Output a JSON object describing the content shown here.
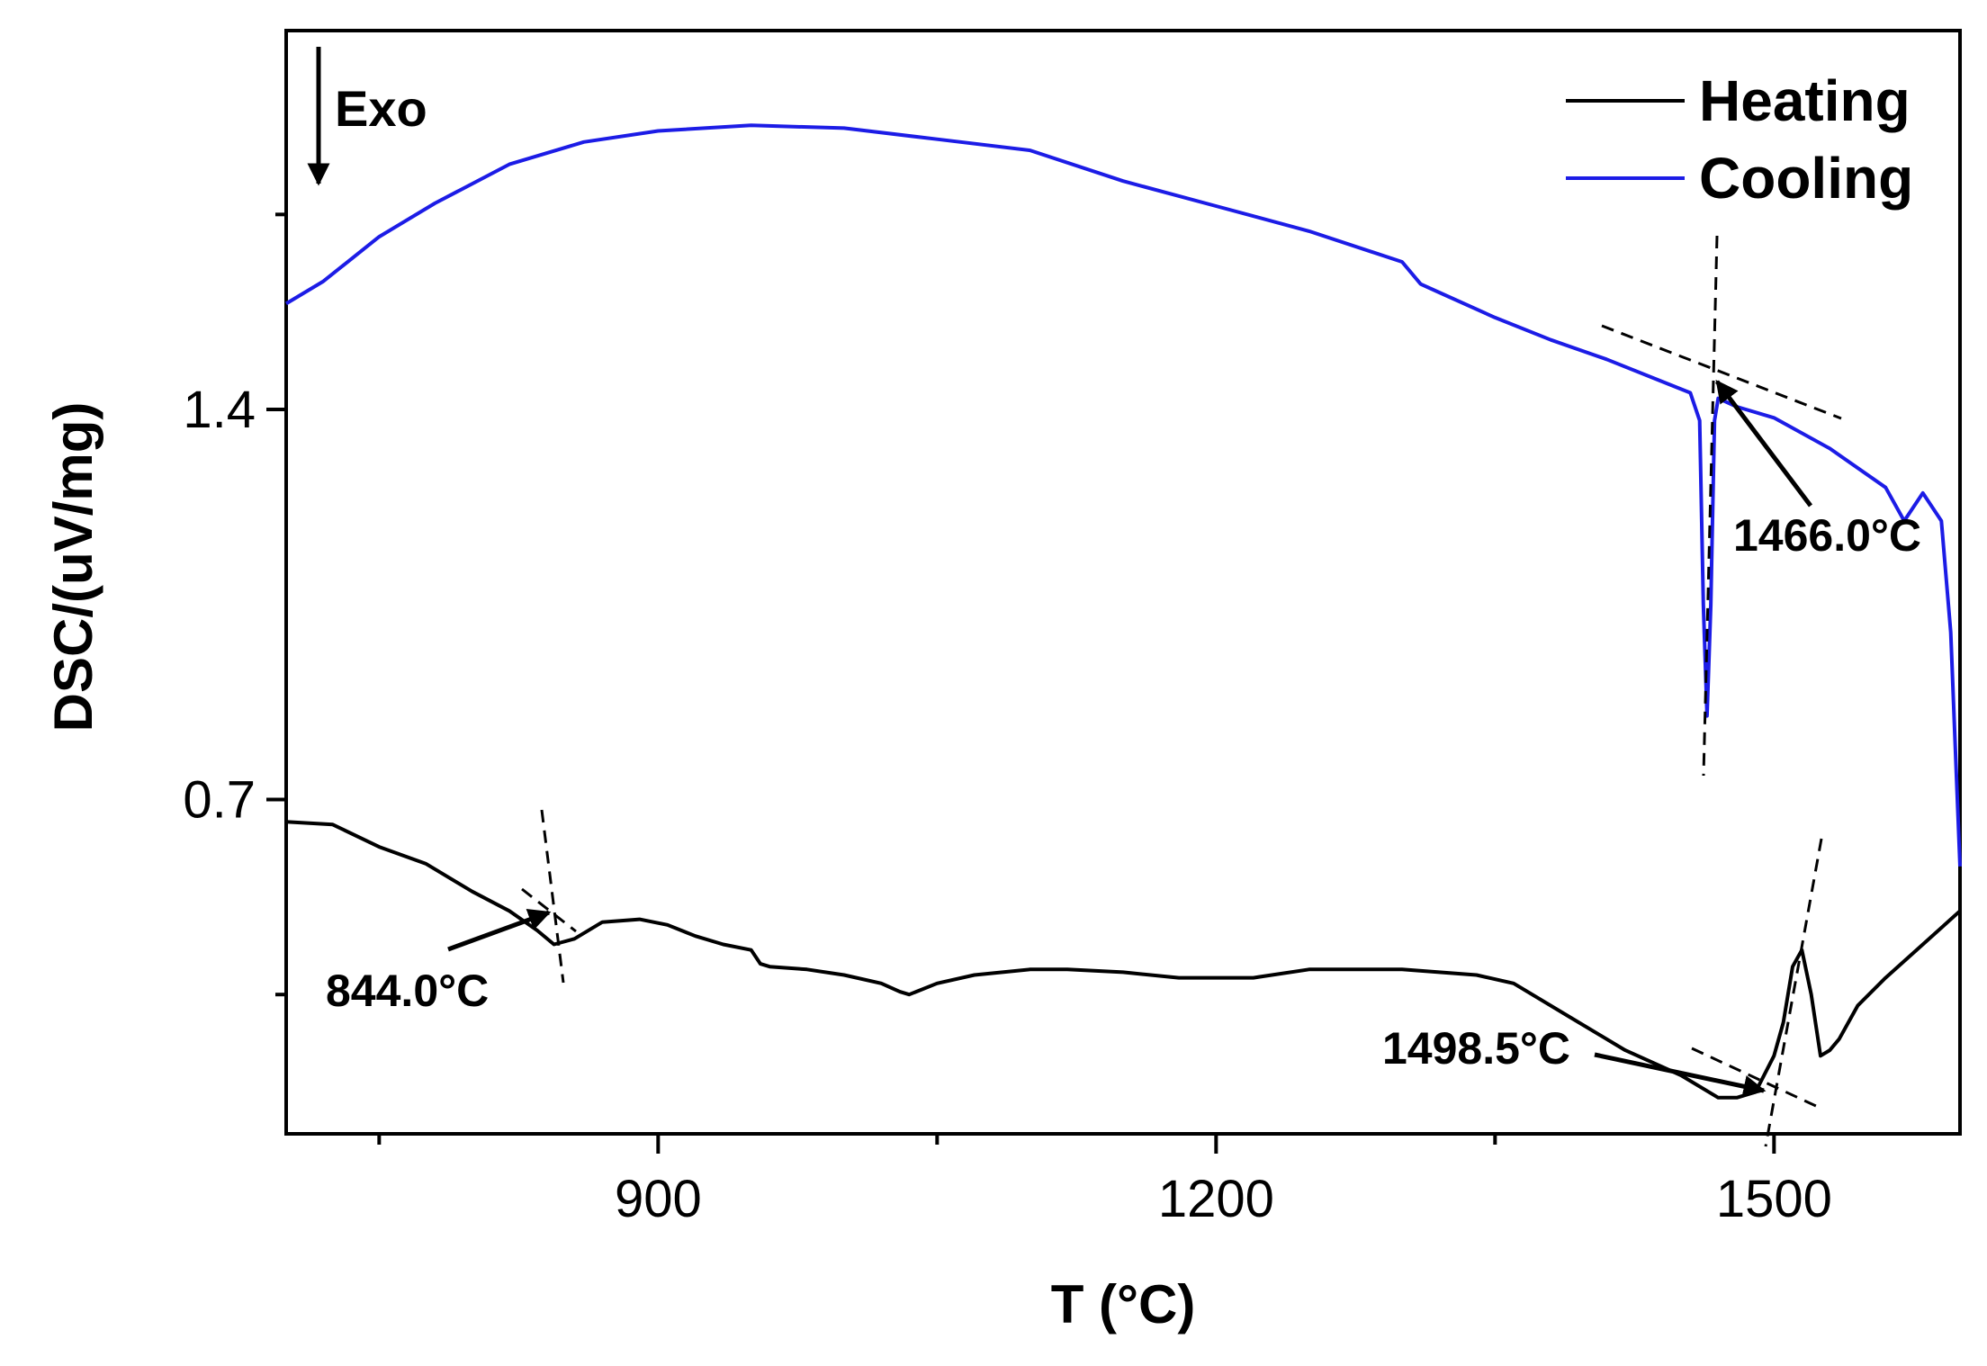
{
  "chart_data": {
    "type": "line",
    "title": "",
    "xlabel": "T (°C)",
    "ylabel": "DSC/(uV/mg)",
    "xlim": [
      700,
      1600
    ],
    "ylim": [
      0.1,
      2.08
    ],
    "x_ticks": [
      {
        "value": 900,
        "label": "900"
      },
      {
        "value": 1200,
        "label": "1200"
      },
      {
        "value": 1500,
        "label": "1500"
      }
    ],
    "x_minor_ticks": [
      750,
      1050,
      1350
    ],
    "y_ticks": [
      {
        "value": 1.4,
        "label": "1.4"
      },
      {
        "value": 0.7,
        "label": "0.7"
      }
    ],
    "y_minor_ticks": [
      0.35,
      1.75
    ],
    "grid": false,
    "legend": {
      "position": "top-right"
    },
    "exo_label": "Exo",
    "series": [
      {
        "name": "Heating",
        "color": "#000000",
        "x": [
          700,
          725,
          750,
          775,
          800,
          820,
          835,
          844,
          855,
          870,
          890,
          905,
          920,
          935,
          950,
          955,
          960,
          980,
          1000,
          1020,
          1030,
          1035,
          1050,
          1070,
          1100,
          1120,
          1150,
          1180,
          1200,
          1220,
          1250,
          1270,
          1300,
          1320,
          1340,
          1360,
          1390,
          1420,
          1450,
          1470,
          1480,
          1490,
          1500,
          1505,
          1510,
          1515,
          1520,
          1525,
          1530,
          1535,
          1545,
          1560,
          1580,
          1600
        ],
        "y": [
          0.66,
          0.655,
          0.615,
          0.585,
          0.535,
          0.5,
          0.465,
          0.44,
          0.45,
          0.48,
          0.485,
          0.475,
          0.455,
          0.44,
          0.43,
          0.405,
          0.4,
          0.395,
          0.385,
          0.37,
          0.355,
          0.35,
          0.37,
          0.385,
          0.395,
          0.395,
          0.39,
          0.38,
          0.38,
          0.38,
          0.395,
          0.395,
          0.395,
          0.39,
          0.385,
          0.37,
          0.31,
          0.25,
          0.205,
          0.165,
          0.165,
          0.175,
          0.24,
          0.3,
          0.4,
          0.43,
          0.35,
          0.24,
          0.25,
          0.27,
          0.33,
          0.38,
          0.44,
          0.5
        ]
      },
      {
        "name": "Cooling",
        "color": "#1c1ce6",
        "x": [
          700,
          720,
          750,
          780,
          820,
          860,
          900,
          950,
          1000,
          1050,
          1100,
          1150,
          1200,
          1250,
          1300,
          1310,
          1320,
          1350,
          1380,
          1410,
          1440,
          1455,
          1460,
          1462,
          1464,
          1466,
          1468,
          1470,
          1480,
          1500,
          1530,
          1560,
          1570,
          1580,
          1590,
          1595,
          1600
        ],
        "y": [
          1.59,
          1.63,
          1.71,
          1.77,
          1.84,
          1.88,
          1.9,
          1.91,
          1.905,
          1.885,
          1.865,
          1.81,
          1.765,
          1.72,
          1.665,
          1.625,
          1.61,
          1.565,
          1.525,
          1.49,
          1.45,
          1.43,
          1.38,
          1.05,
          0.85,
          1.05,
          1.38,
          1.42,
          1.405,
          1.385,
          1.33,
          1.26,
          1.2,
          1.25,
          1.2,
          1.0,
          0.58
        ]
      }
    ],
    "annotations": [
      {
        "label": "844.0°C",
        "value": 844.0,
        "series": "Heating"
      },
      {
        "label": "1498.5°C",
        "value": 1498.5,
        "series": "Heating"
      },
      {
        "label": "1466.0°C",
        "value": 1466.0,
        "series": "Cooling"
      }
    ]
  }
}
